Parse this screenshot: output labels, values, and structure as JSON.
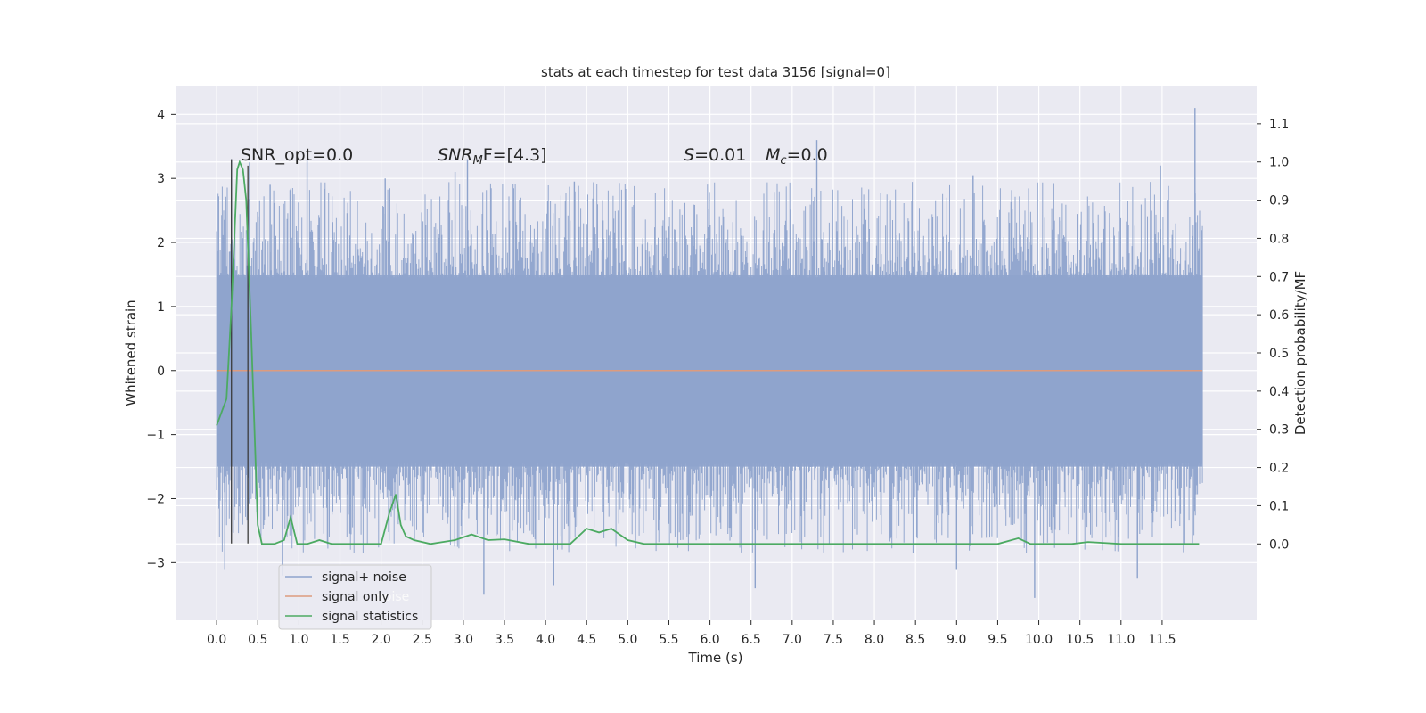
{
  "chart_data": {
    "type": "line",
    "title": "stats at each timestep for test data 3156 [signal=0]",
    "xlabel": "Time (s)",
    "ylabel": "Whitened strain",
    "ylabel_right": "Detection probability/MF",
    "xlim": [
      -0.5,
      12.65
    ],
    "ylim": [
      -3.9,
      4.45
    ],
    "ylim_right": [
      -0.2,
      1.2
    ],
    "x_ticks": [
      "0.0",
      "0.5",
      "1.0",
      "1.5",
      "2.0",
      "2.5",
      "3.0",
      "3.5",
      "4.0",
      "4.5",
      "5.0",
      "5.5",
      "6.0",
      "6.5",
      "7.0",
      "7.5",
      "8.0",
      "8.5",
      "9.0",
      "9.5",
      "10.0",
      "10.5",
      "11.0",
      "11.5"
    ],
    "y_ticks": [
      "−3",
      "−2",
      "−1",
      "0",
      "1",
      "2",
      "3",
      "4"
    ],
    "y_ticks_right": [
      "0.0",
      "0.1",
      "0.2",
      "0.3",
      "0.4",
      "0.5",
      "0.6",
      "0.7",
      "0.8",
      "0.9",
      "1.0",
      "1.1"
    ],
    "grid": true,
    "legend_position": "lower-left",
    "annotations": {
      "snr_opt": "SNR_opt=0.0",
      "snr_mf_base": "SNR",
      "snr_mf_sub": "M",
      "snr_mf_rest": "F=[4.3]",
      "s_base": "S",
      "s_rest": "=0.01",
      "mc_base": "M",
      "mc_sub": "c",
      "mc_rest": "=0.0"
    },
    "series": [
      {
        "name": "signal+ noise",
        "color": "#8ea3cc",
        "x_range": [
          0.0,
          11.99
        ],
        "band_y": [
          -1.5,
          1.5
        ],
        "peak_y_range": [
          -3.5,
          4.1
        ],
        "spikes": [
          {
            "x": 0.18,
            "y": 3.3
          },
          {
            "x": 0.4,
            "y": 3.25
          },
          {
            "x": 0.65,
            "y": 2.9
          },
          {
            "x": 1.1,
            "y": 3.3
          },
          {
            "x": 2.05,
            "y": 3.0
          },
          {
            "x": 2.9,
            "y": 3.1
          },
          {
            "x": 3.05,
            "y": 3.3
          },
          {
            "x": 4.35,
            "y": 2.95
          },
          {
            "x": 7.3,
            "y": 3.6
          },
          {
            "x": 9.2,
            "y": 3.05
          },
          {
            "x": 11.48,
            "y": 3.2
          },
          {
            "x": 11.9,
            "y": 4.1
          },
          {
            "x": 0.1,
            "y": -3.1
          },
          {
            "x": 0.8,
            "y": -3.2
          },
          {
            "x": 3.25,
            "y": -3.5
          },
          {
            "x": 4.1,
            "y": -3.35
          },
          {
            "x": 6.55,
            "y": -3.4
          },
          {
            "x": 9.0,
            "y": -3.1
          },
          {
            "x": 9.95,
            "y": -3.55
          },
          {
            "x": 11.2,
            "y": -3.25
          }
        ]
      },
      {
        "name": "signal only",
        "color": "#dd9b7e",
        "x": [
          0.0,
          11.99
        ],
        "y": [
          0.0,
          0.0
        ]
      },
      {
        "name": "signal statistics",
        "color": "#4caa62",
        "axis": "right",
        "x": [
          0.0,
          0.12,
          0.18,
          0.25,
          0.28,
          0.32,
          0.36,
          0.42,
          0.5,
          0.55,
          0.7,
          0.82,
          0.9,
          0.98,
          1.1,
          1.25,
          1.4,
          2.0,
          2.1,
          2.18,
          2.24,
          2.3,
          2.4,
          2.6,
          2.9,
          3.1,
          3.3,
          3.5,
          3.8,
          4.3,
          4.5,
          4.65,
          4.8,
          5.0,
          5.2,
          5.5,
          6.0,
          6.5,
          7.0,
          7.5,
          8.0,
          8.5,
          9.0,
          9.5,
          9.75,
          9.9,
          10.4,
          10.6,
          11.0,
          11.5,
          11.95
        ],
        "y": [
          0.31,
          0.38,
          0.62,
          0.98,
          1.0,
          0.98,
          0.9,
          0.55,
          0.05,
          0.0,
          0.0,
          0.01,
          0.07,
          0.0,
          0.0,
          0.01,
          0.0,
          0.0,
          0.08,
          0.13,
          0.05,
          0.02,
          0.01,
          0.0,
          0.01,
          0.025,
          0.01,
          0.012,
          0.0,
          0.0,
          0.04,
          0.03,
          0.04,
          0.01,
          0.0,
          0.0,
          0.0,
          0.0,
          0.0,
          0.0,
          0.0,
          0.0,
          0.0,
          0.0,
          0.015,
          0.0,
          0.0,
          0.005,
          0.0,
          0.0,
          0.0
        ]
      }
    ],
    "vlines": [
      {
        "x": 0.18,
        "y0": -2.7,
        "y1": 3.3
      },
      {
        "x": 0.38,
        "y0": -2.7,
        "y1": 3.2
      }
    ],
    "legend_ghost_text": "noise"
  }
}
